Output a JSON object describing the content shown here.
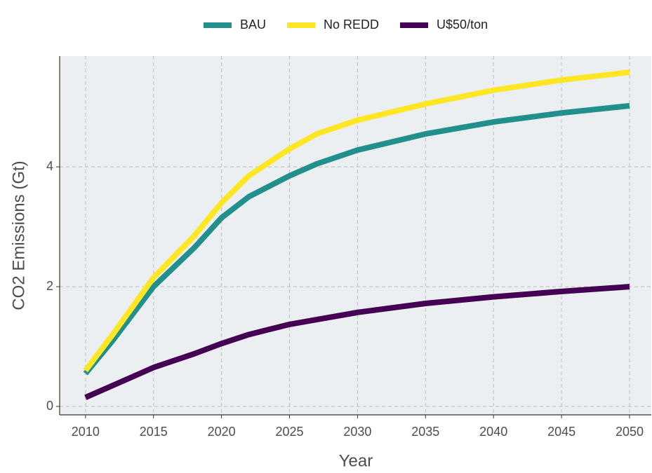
{
  "chart_data": {
    "type": "line",
    "x_label": "Year",
    "y_label": "CO2 Emissions (Gt)",
    "x": [
      2010,
      2012,
      2015,
      2018,
      2020,
      2022,
      2025,
      2027,
      2030,
      2035,
      2040,
      2045,
      2050
    ],
    "series": [
      {
        "name": "BAU",
        "color": "#21908c",
        "values": [
          0.55,
          1.1,
          2.0,
          2.65,
          3.15,
          3.5,
          3.85,
          4.05,
          4.28,
          4.55,
          4.75,
          4.9,
          5.02
        ]
      },
      {
        "name": "No REDD",
        "color": "#fde725",
        "values": [
          0.6,
          1.2,
          2.15,
          2.85,
          3.4,
          3.85,
          4.3,
          4.55,
          4.78,
          5.05,
          5.28,
          5.45,
          5.58
        ]
      },
      {
        "name": "U$50/ton",
        "color": "#440154",
        "values": [
          0.15,
          0.35,
          0.65,
          0.88,
          1.05,
          1.2,
          1.37,
          1.45,
          1.57,
          1.72,
          1.83,
          1.92,
          2.0
        ]
      }
    ],
    "xlim": [
      2008.1,
      2051.6
    ],
    "ylim": [
      -0.14,
      5.85
    ],
    "xticks": [
      2010,
      2015,
      2020,
      2025,
      2030,
      2035,
      2040,
      2045,
      2050
    ],
    "yticks": [
      0,
      2,
      4
    ],
    "grid": true,
    "legend": "top"
  }
}
